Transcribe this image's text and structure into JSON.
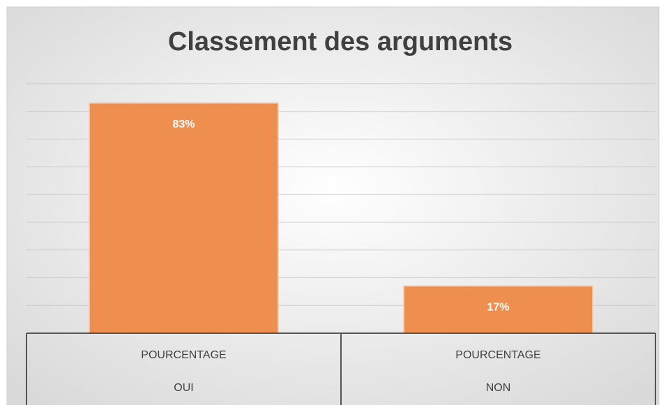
{
  "chart_data": {
    "type": "bar",
    "title": "Classement des arguments",
    "categories": [
      [
        "POURCENTAGE",
        "OUI"
      ],
      [
        "POURCENTAGE",
        "NON"
      ]
    ],
    "values": [
      83,
      17
    ],
    "value_labels": [
      "83%",
      "17%"
    ],
    "color": "#ef8f4f",
    "ylim": [
      0,
      90
    ],
    "yticks": [
      0,
      10,
      20,
      30,
      40,
      50,
      60,
      70,
      80,
      90
    ],
    "grid": true
  }
}
